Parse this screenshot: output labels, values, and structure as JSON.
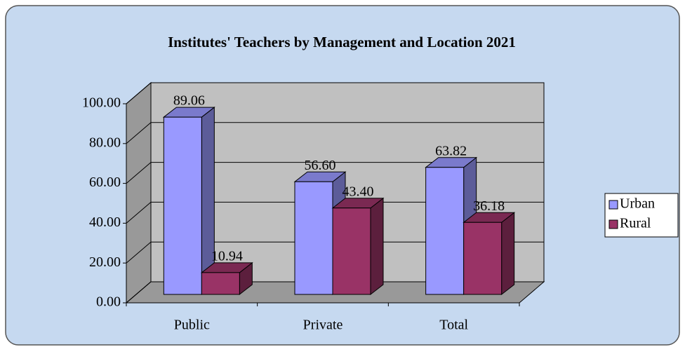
{
  "chart_data": {
    "type": "bar3d",
    "title": "Institutes' Teachers by Management and Location 2021",
    "categories": [
      "Public",
      "Private",
      "Total"
    ],
    "series": [
      {
        "name": "Urban",
        "color": "#9999ff",
        "values": [
          89.06,
          56.6,
          63.82
        ],
        "value_labels": [
          "89.06",
          "56.60",
          "63.82"
        ]
      },
      {
        "name": "Rural",
        "color": "#993366",
        "values": [
          10.94,
          43.4,
          36.18
        ],
        "value_labels": [
          "10.94",
          "43.40",
          "36.18"
        ]
      }
    ],
    "ylim": [
      0,
      100
    ],
    "yticks": [
      {
        "value": 0,
        "label": "0.00"
      },
      {
        "value": 20,
        "label": "20.00"
      },
      {
        "value": 40,
        "label": "40.00"
      },
      {
        "value": 60,
        "label": "60.00"
      },
      {
        "value": 80,
        "label": "80.00"
      },
      {
        "value": 100,
        "label": "100.00"
      }
    ],
    "grid": true,
    "legend": "right"
  }
}
